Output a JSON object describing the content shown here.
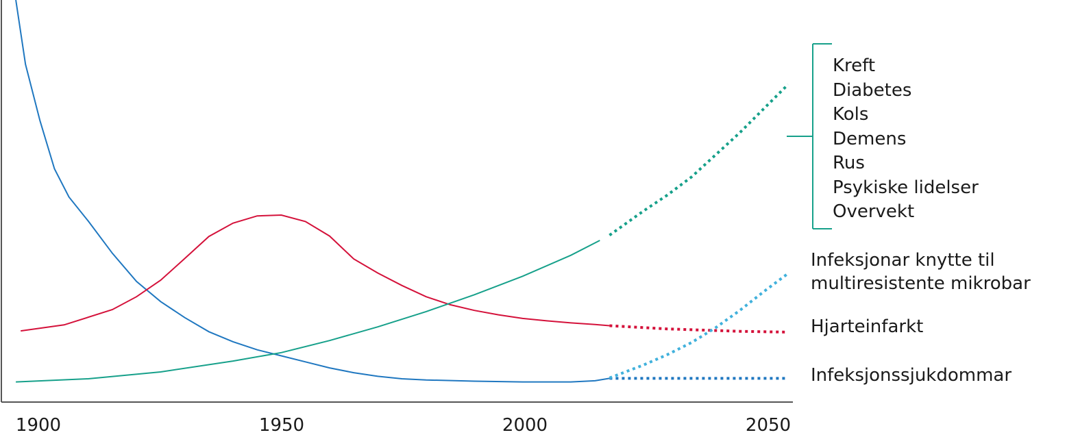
{
  "chart_data": {
    "type": "line",
    "title": "",
    "xlabel": "",
    "ylabel": "",
    "xlim": [
      1892,
      2056
    ],
    "ylim": [
      0,
      100
    ],
    "x_ticks": [
      "1900",
      "1950",
      "2000",
      "2050"
    ],
    "colors": {
      "infection": "#1f77c0",
      "heart": "#d4113a",
      "chronic": "#16a08a",
      "resistant": "#41b1dc"
    },
    "series": [
      {
        "key": "infection",
        "name": "Infeksjonssjukdommar",
        "color": "#1f77c0",
        "points": [
          [
            1895,
            100
          ],
          [
            1897,
            84
          ],
          [
            1900,
            70
          ],
          [
            1903,
            58
          ],
          [
            1906,
            51
          ],
          [
            1910,
            45
          ],
          [
            1915,
            37
          ],
          [
            1920,
            30
          ],
          [
            1925,
            25
          ],
          [
            1930,
            21
          ],
          [
            1935,
            17.5
          ],
          [
            1940,
            15
          ],
          [
            1945,
            13
          ],
          [
            1950,
            11.5
          ],
          [
            1955,
            10
          ],
          [
            1960,
            8.5
          ],
          [
            1965,
            7.3
          ],
          [
            1970,
            6.4
          ],
          [
            1975,
            5.8
          ],
          [
            1980,
            5.5
          ],
          [
            1990,
            5.2
          ],
          [
            2000,
            5.0
          ],
          [
            2010,
            5.0
          ],
          [
            2015,
            5.3
          ],
          [
            2018,
            5.9
          ]
        ],
        "projection": [
          [
            2018,
            5.9
          ],
          [
            2030,
            5.9
          ],
          [
            2045,
            5.9
          ],
          [
            2055,
            5.9
          ]
        ]
      },
      {
        "key": "heart",
        "name": "Hjarteinfarkt",
        "color": "#d4113a",
        "points": [
          [
            1896,
            17.7
          ],
          [
            1905,
            19.2
          ],
          [
            1915,
            23
          ],
          [
            1920,
            26.2
          ],
          [
            1925,
            30.3
          ],
          [
            1930,
            35.7
          ],
          [
            1935,
            41.2
          ],
          [
            1940,
            44.5
          ],
          [
            1945,
            46.3
          ],
          [
            1950,
            46.5
          ],
          [
            1955,
            44.9
          ],
          [
            1960,
            41.3
          ],
          [
            1965,
            35.6
          ],
          [
            1970,
            32.1
          ],
          [
            1975,
            29
          ],
          [
            1980,
            26.2
          ],
          [
            1985,
            24.2
          ],
          [
            1990,
            22.8
          ],
          [
            1995,
            21.7
          ],
          [
            2000,
            20.8
          ],
          [
            2005,
            20.2
          ],
          [
            2010,
            19.7
          ],
          [
            2015,
            19.3
          ],
          [
            2018,
            19.0
          ]
        ],
        "projection": [
          [
            2018,
            19.0
          ],
          [
            2030,
            18.2
          ],
          [
            2045,
            17.6
          ],
          [
            2055,
            17.4
          ]
        ]
      },
      {
        "key": "chronic",
        "name": "Kreft, Diabetes, Kols, Demens, Rus, Psykiske lidelser, Overvekt",
        "color": "#16a08a",
        "points": [
          [
            1895,
            5
          ],
          [
            1910,
            5.8
          ],
          [
            1925,
            7.5
          ],
          [
            1940,
            10.2
          ],
          [
            1950,
            12.3
          ],
          [
            1960,
            15.3
          ],
          [
            1970,
            18.7
          ],
          [
            1980,
            22.5
          ],
          [
            1990,
            26.7
          ],
          [
            2000,
            31.3
          ],
          [
            2010,
            36.5
          ],
          [
            2016,
            40.2
          ]
        ],
        "projection": [
          [
            2018,
            41.5
          ],
          [
            2025,
            47.5
          ],
          [
            2030,
            51.5
          ],
          [
            2035,
            56
          ],
          [
            2040,
            61.5
          ],
          [
            2045,
            67
          ],
          [
            2050,
            73
          ],
          [
            2055,
            79
          ]
        ]
      },
      {
        "key": "resistant",
        "name": "Infeksjonar knytte til multiresistente mikrobar",
        "color": "#41b1dc",
        "points": [],
        "projection": [
          [
            2018,
            6.0
          ],
          [
            2025,
            9.2
          ],
          [
            2030,
            11.8
          ],
          [
            2035,
            14.8
          ],
          [
            2040,
            18.5
          ],
          [
            2045,
            22.8
          ],
          [
            2050,
            27.5
          ],
          [
            2055,
            32
          ]
        ]
      }
    ],
    "labels": {
      "chronic_list": [
        "Kreft",
        "Diabetes",
        "Kols",
        "Demens",
        "Rus",
        "Psykiske lidelser",
        "Overvekt"
      ],
      "resistant_line1": "Infeksjonar knytte til",
      "resistant_line2": "multiresistente mikrobar",
      "heart": "Hjarteinfarkt",
      "infection": "Infeksjonssjukdommar"
    }
  }
}
